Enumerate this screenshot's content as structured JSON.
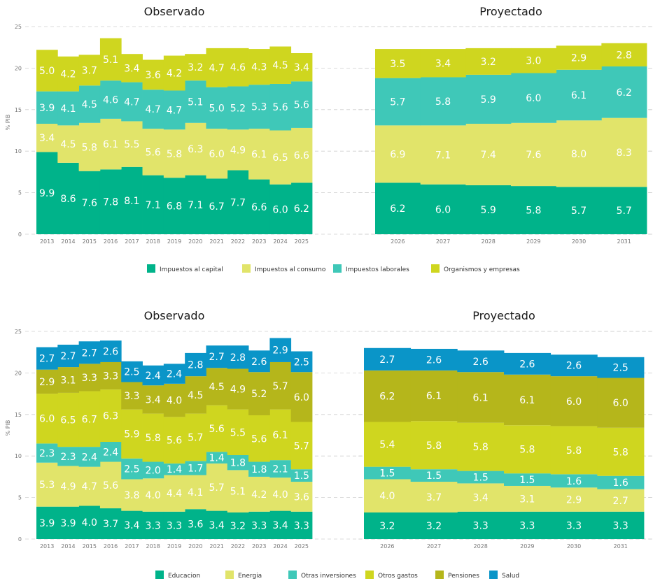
{
  "chart_data": [
    {
      "type": "bar",
      "stacked": true,
      "title": "Observado",
      "ylabel": "% PIB",
      "ylim": [
        0,
        25
      ],
      "yticks": [
        0,
        5,
        10,
        15,
        20,
        25
      ],
      "categories": [
        "2013",
        "2014",
        "2015",
        "2016",
        "2017",
        "2018",
        "2019",
        "2020",
        "2021",
        "2022",
        "2023",
        "2024",
        "2025"
      ],
      "series": [
        {
          "name": "Impuestos al capital",
          "color": "#00b38a",
          "values": [
            9.9,
            8.6,
            7.6,
            7.8,
            8.1,
            7.1,
            6.8,
            7.1,
            6.7,
            7.7,
            6.6,
            6.0,
            6.2
          ]
        },
        {
          "name": "Impuestos al consumo",
          "color": "#e1e46a",
          "values": [
            3.4,
            4.5,
            5.8,
            6.1,
            5.5,
            5.6,
            5.8,
            6.3,
            6.0,
            4.9,
            6.1,
            6.5,
            6.6
          ]
        },
        {
          "name": "Impuestos laborales",
          "color": "#3fc8b8",
          "values": [
            3.9,
            4.1,
            4.5,
            4.6,
            4.7,
            4.7,
            4.7,
            5.1,
            5.0,
            5.2,
            5.3,
            5.6,
            5.6
          ]
        },
        {
          "name": "Organismos y empresas",
          "color": "#cfd61f",
          "values": [
            5.0,
            4.2,
            3.7,
            5.1,
            3.4,
            3.6,
            4.2,
            3.2,
            4.7,
            4.6,
            4.3,
            4.5,
            3.4
          ]
        }
      ]
    },
    {
      "type": "bar",
      "stacked": true,
      "title": "Proyectado",
      "ylim": [
        0,
        25
      ],
      "categories": [
        "2026",
        "2027",
        "2028",
        "2029",
        "2030",
        "2031"
      ],
      "series": [
        {
          "name": "Impuestos al capital",
          "color": "#00b38a",
          "values": [
            6.2,
            6.0,
            5.9,
            5.8,
            5.7,
            5.7
          ]
        },
        {
          "name": "Impuestos al consumo",
          "color": "#e1e46a",
          "values": [
            6.9,
            7.1,
            7.4,
            7.6,
            8.0,
            8.3
          ]
        },
        {
          "name": "Impuestos laborales",
          "color": "#3fc8b8",
          "values": [
            5.7,
            5.8,
            5.9,
            6.0,
            6.1,
            6.2
          ]
        },
        {
          "name": "Organismos y empresas",
          "color": "#cfd61f",
          "values": [
            3.5,
            3.4,
            3.2,
            3.0,
            2.9,
            2.8
          ]
        }
      ]
    },
    {
      "type": "bar",
      "stacked": true,
      "title": "Observado",
      "ylabel": "% PIB",
      "ylim": [
        0,
        25
      ],
      "yticks": [
        0,
        5,
        10,
        15,
        20,
        25
      ],
      "categories": [
        "2013",
        "2014",
        "2015",
        "2016",
        "2017",
        "2018",
        "2019",
        "2020",
        "2021",
        "2022",
        "2023",
        "2024",
        "2025"
      ],
      "series": [
        {
          "name": "Educacion",
          "color": "#00b38a",
          "values": [
            3.9,
            3.9,
            4.0,
            3.7,
            3.4,
            3.3,
            3.3,
            3.6,
            3.4,
            3.2,
            3.3,
            3.4,
            3.3
          ]
        },
        {
          "name": "Energia",
          "color": "#e1e46a",
          "values": [
            5.3,
            4.9,
            4.7,
            5.6,
            3.8,
            4.0,
            4.4,
            4.1,
            5.7,
            5.1,
            4.2,
            4.0,
            3.6
          ]
        },
        {
          "name": "Otras inversiones",
          "color": "#3fc8b8",
          "values": [
            2.3,
            2.3,
            2.4,
            2.4,
            2.5,
            2.0,
            1.4,
            1.7,
            1.4,
            1.8,
            1.8,
            2.1,
            1.5
          ]
        },
        {
          "name": "Otros gastos",
          "color": "#cfd61f",
          "values": [
            6.0,
            6.5,
            6.7,
            6.3,
            5.9,
            5.8,
            5.6,
            5.7,
            5.6,
            5.5,
            5.6,
            6.1,
            5.7
          ]
        },
        {
          "name": "Pensiones",
          "color": "#b5b61b",
          "values": [
            2.9,
            3.1,
            3.3,
            3.3,
            3.3,
            3.4,
            4.0,
            4.5,
            4.5,
            4.9,
            5.2,
            5.7,
            6.0
          ]
        },
        {
          "name": "Salud",
          "color": "#0a95c8",
          "values": [
            2.7,
            2.7,
            2.7,
            2.6,
            2.5,
            2.4,
            2.4,
            2.8,
            2.7,
            2.8,
            2.6,
            2.9,
            2.5
          ]
        }
      ]
    },
    {
      "type": "bar",
      "stacked": true,
      "title": "Proyectado",
      "ylim": [
        0,
        25
      ],
      "categories": [
        "2026",
        "2027",
        "2028",
        "2029",
        "2030",
        "2031"
      ],
      "series": [
        {
          "name": "Educacion",
          "color": "#00b38a",
          "values": [
            3.2,
            3.2,
            3.3,
            3.3,
            3.3,
            3.3
          ]
        },
        {
          "name": "Energia",
          "color": "#e1e46a",
          "values": [
            4.0,
            3.7,
            3.4,
            3.1,
            2.9,
            2.7
          ]
        },
        {
          "name": "Otras inversiones",
          "color": "#3fc8b8",
          "values": [
            1.5,
            1.5,
            1.5,
            1.5,
            1.6,
            1.6
          ]
        },
        {
          "name": "Otros gastos",
          "color": "#cfd61f",
          "values": [
            5.4,
            5.8,
            5.8,
            5.8,
            5.8,
            5.8
          ]
        },
        {
          "name": "Pensiones",
          "color": "#b5b61b",
          "values": [
            6.2,
            6.1,
            6.1,
            6.1,
            6.0,
            6.0
          ]
        },
        {
          "name": "Salud",
          "color": "#0a95c8",
          "values": [
            2.7,
            2.6,
            2.6,
            2.6,
            2.6,
            2.5
          ]
        }
      ]
    }
  ]
}
